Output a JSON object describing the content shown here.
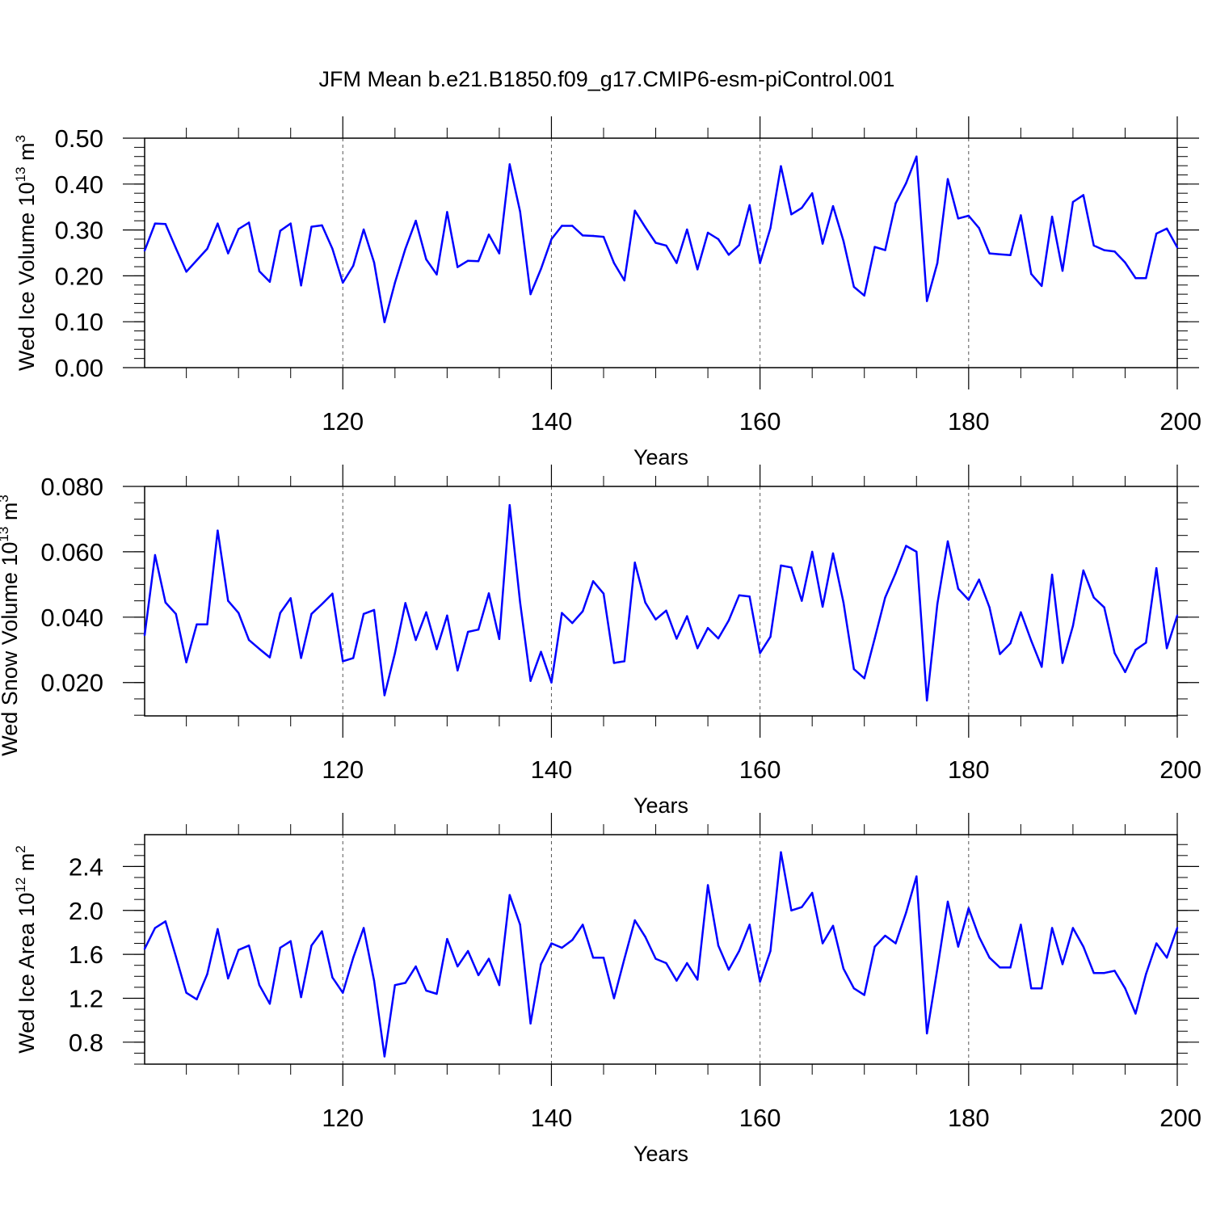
{
  "chart_data": {
    "title": "JFM Mean b.e21.B1850.f09_g17.CMIP6-esm-piControl.001",
    "type": "line",
    "line_color": "#0000ff",
    "x": [
      101,
      102,
      103,
      104,
      105,
      106,
      107,
      108,
      109,
      110,
      111,
      112,
      113,
      114,
      115,
      116,
      117,
      118,
      119,
      120,
      121,
      122,
      123,
      124,
      125,
      126,
      127,
      128,
      129,
      130,
      131,
      132,
      133,
      134,
      135,
      136,
      137,
      138,
      139,
      140,
      141,
      142,
      143,
      144,
      145,
      146,
      147,
      148,
      149,
      150,
      151,
      152,
      153,
      154,
      155,
      156,
      157,
      158,
      159,
      160,
      161,
      162,
      163,
      164,
      165,
      166,
      167,
      168,
      169,
      170,
      171,
      172,
      173,
      174,
      175,
      176,
      177,
      178,
      179,
      180,
      181,
      182,
      183,
      184,
      185,
      186,
      187,
      188,
      189,
      190,
      191,
      192,
      193,
      194,
      195,
      196,
      197,
      198,
      199,
      200
    ],
    "xlim": [
      101,
      200
    ],
    "x_major_ticks": [
      120,
      140,
      160,
      180,
      200
    ],
    "x_major_tick_labels": [
      "120",
      "140",
      "160",
      "180",
      "200"
    ],
    "x_minor_ticks": [
      105,
      110,
      115,
      125,
      130,
      135,
      145,
      150,
      155,
      165,
      170,
      175,
      185,
      190,
      195
    ],
    "panels": [
      {
        "name": "ice-volume",
        "ylabel": "Wed Ice Volume 10",
        "ylabel_exponent": "13",
        "ylabel_unit": "m",
        "ylabel_unit_exponent": "3",
        "xlabel": "",
        "ylim": [
          0.0,
          0.5
        ],
        "y_major_ticks": [
          0.0,
          0.1,
          0.2,
          0.3,
          0.4,
          0.5
        ],
        "y_tick_labels": [
          "0.00",
          "0.10",
          "0.20",
          "0.30",
          "0.40",
          "0.50"
        ],
        "y_minor_step": 0.02,
        "values": [
          0.255,
          0.314,
          0.313,
          0.26,
          0.209,
          0.234,
          0.259,
          0.314,
          0.249,
          0.302,
          0.316,
          0.21,
          0.187,
          0.298,
          0.314,
          0.179,
          0.307,
          0.31,
          0.259,
          0.185,
          0.222,
          0.301,
          0.229,
          0.099,
          0.185,
          0.259,
          0.32,
          0.236,
          0.203,
          0.339,
          0.219,
          0.233,
          0.232,
          0.29,
          0.249,
          0.443,
          0.34,
          0.16,
          0.215,
          0.28,
          0.309,
          0.309,
          0.288,
          0.287,
          0.285,
          0.228,
          0.19,
          0.342,
          0.306,
          0.272,
          0.266,
          0.228,
          0.301,
          0.214,
          0.294,
          0.28,
          0.246,
          0.267,
          0.354,
          0.228,
          0.304,
          0.439,
          0.334,
          0.348,
          0.38,
          0.27,
          0.352,
          0.276,
          0.176,
          0.157,
          0.263,
          0.256,
          0.358,
          0.402,
          0.46,
          0.145,
          0.228,
          0.411,
          0.325,
          0.331,
          0.304,
          0.249,
          0.247,
          0.245,
          0.332,
          0.204,
          0.178,
          0.329,
          0.211,
          0.361,
          0.376,
          0.266,
          0.256,
          0.253,
          0.229,
          0.195,
          0.195,
          0.292,
          0.303,
          0.262
        ]
      },
      {
        "name": "snow-volume",
        "ylabel": "Wed Snow Volume 10",
        "ylabel_exponent": "13",
        "ylabel_unit": "m",
        "ylabel_unit_exponent": "3",
        "xlabel": "Years",
        "ylim": [
          0.0098,
          0.08
        ],
        "y_major_ticks": [
          0.02,
          0.04,
          0.06,
          0.08
        ],
        "y_tick_labels": [
          "0.020",
          "0.040",
          "0.060",
          "0.080"
        ],
        "y_minor_step": 0.005,
        "values": [
          0.0345,
          0.059,
          0.0445,
          0.041,
          0.0262,
          0.0378,
          0.0378,
          0.0665,
          0.045,
          0.0413,
          0.033,
          0.0303,
          0.0277,
          0.0413,
          0.0458,
          0.0275,
          0.041,
          0.044,
          0.0472,
          0.0265,
          0.0275,
          0.041,
          0.0422,
          0.0161,
          0.029,
          0.0443,
          0.033,
          0.0415,
          0.0302,
          0.0405,
          0.0237,
          0.0355,
          0.0362,
          0.0473,
          0.0333,
          0.0743,
          0.0445,
          0.0205,
          0.0294,
          0.02,
          0.0413,
          0.0382,
          0.0418,
          0.051,
          0.0472,
          0.026,
          0.0265,
          0.0567,
          0.0445,
          0.0393,
          0.042,
          0.0334,
          0.0403,
          0.0305,
          0.0367,
          0.0335,
          0.039,
          0.0467,
          0.0463,
          0.029,
          0.034,
          0.0558,
          0.0552,
          0.045,
          0.06,
          0.0432,
          0.0595,
          0.0445,
          0.0241,
          0.0213,
          0.0335,
          0.046,
          0.0535,
          0.0618,
          0.06,
          0.0145,
          0.044,
          0.0632,
          0.0487,
          0.0453,
          0.0515,
          0.043,
          0.0287,
          0.032,
          0.0415,
          0.0328,
          0.0248,
          0.053,
          0.026,
          0.0373,
          0.0543,
          0.046,
          0.043,
          0.029,
          0.0232,
          0.03,
          0.0322,
          0.055,
          0.0305,
          0.0405
        ]
      },
      {
        "name": "ice-area",
        "ylabel": "Wed Ice Area 10",
        "ylabel_exponent": "12",
        "ylabel_unit": "m",
        "ylabel_unit_exponent": "2",
        "xlabel": "Years",
        "ylim": [
          0.6,
          2.69
        ],
        "y_major_ticks": [
          0.8,
          1.2,
          1.6,
          2.0,
          2.4
        ],
        "y_tick_labels": [
          "0.8",
          "1.2",
          "1.6",
          "2.0",
          "2.4"
        ],
        "y_minor_step": 0.1,
        "values": [
          1.65,
          1.84,
          1.9,
          1.58,
          1.25,
          1.19,
          1.42,
          1.83,
          1.38,
          1.64,
          1.68,
          1.32,
          1.15,
          1.66,
          1.72,
          1.21,
          1.68,
          1.81,
          1.39,
          1.25,
          1.57,
          1.84,
          1.36,
          0.67,
          1.32,
          1.34,
          1.49,
          1.27,
          1.24,
          1.74,
          1.49,
          1.63,
          1.41,
          1.56,
          1.32,
          2.14,
          1.87,
          0.97,
          1.51,
          1.7,
          1.66,
          1.73,
          1.87,
          1.57,
          1.57,
          1.2,
          1.56,
          1.91,
          1.76,
          1.56,
          1.52,
          1.36,
          1.52,
          1.37,
          2.23,
          1.68,
          1.46,
          1.63,
          1.87,
          1.35,
          1.63,
          2.53,
          2.0,
          2.03,
          2.16,
          1.7,
          1.86,
          1.47,
          1.29,
          1.23,
          1.67,
          1.77,
          1.7,
          1.98,
          2.31,
          0.88,
          1.47,
          2.08,
          1.67,
          2.02,
          1.76,
          1.57,
          1.48,
          1.48,
          1.87,
          1.29,
          1.29,
          1.84,
          1.51,
          1.84,
          1.67,
          1.43,
          1.43,
          1.45,
          1.29,
          1.06,
          1.42,
          1.7,
          1.57,
          1.84
        ]
      }
    ]
  }
}
